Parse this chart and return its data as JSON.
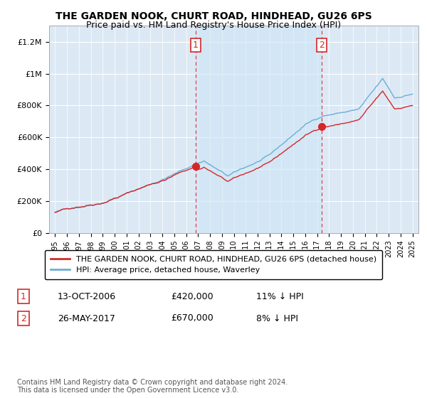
{
  "title1": "THE GARDEN NOOK, CHURT ROAD, HINDHEAD, GU26 6PS",
  "title2": "Price paid vs. HM Land Registry's House Price Index (HPI)",
  "ylim": [
    0,
    1300000
  ],
  "yticks": [
    0,
    200000,
    400000,
    600000,
    800000,
    1000000,
    1200000
  ],
  "ytick_labels": [
    "£0",
    "£200K",
    "£400K",
    "£600K",
    "£800K",
    "£1M",
    "£1.2M"
  ],
  "background_color": "#ffffff",
  "plot_bg_color": "#dce9f5",
  "shade_between_color": "#cde0f0",
  "purchase1_date_x": 2006.79,
  "purchase1_price": 420000,
  "purchase2_date_x": 2017.37,
  "purchase2_price": 670000,
  "legend_line1": "THE GARDEN NOOK, CHURT ROAD, HINDHEAD, GU26 6PS (detached house)",
  "legend_line2": "HPI: Average price, detached house, Waverley",
  "note1_label": "1",
  "note1_date": "13-OCT-2006",
  "note1_price": "£420,000",
  "note1_hpi": "11% ↓ HPI",
  "note2_label": "2",
  "note2_date": "26-MAY-2017",
  "note2_price": "£670,000",
  "note2_hpi": "8% ↓ HPI",
  "footer": "Contains HM Land Registry data © Crown copyright and database right 2024.\nThis data is licensed under the Open Government Licence v3.0.",
  "hpi_color": "#6baed6",
  "price_color": "#d62728",
  "marker_vline_color": "#d62728",
  "xtick_start": 1995,
  "xtick_end": 2025
}
